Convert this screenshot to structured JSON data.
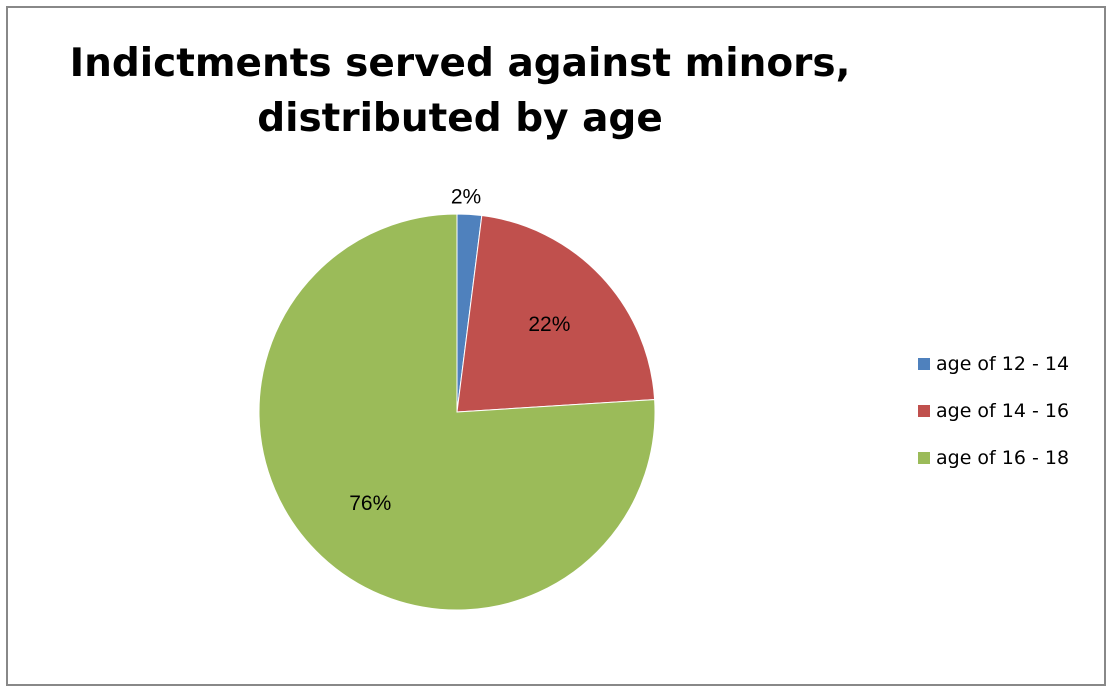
{
  "colors": {
    "age_12_14": "#4F81BD",
    "age_14_16": "#C0504D",
    "age_16_18": "#9BBB59",
    "border": "#888888",
    "background": "#FFFFFF"
  },
  "chart_data": {
    "type": "pie",
    "title": "Indictments served against minors, distributed by age",
    "title_lines": [
      "Indictments served against minors,",
      "distributed by age"
    ],
    "categories": [
      "age of 12 - 14",
      "age of 14 - 16",
      "age of 16 - 18"
    ],
    "values": [
      2,
      22,
      76
    ],
    "data_labels": [
      "2%",
      "22%",
      "76%"
    ],
    "colors": [
      "#4F81BD",
      "#C0504D",
      "#9BBB59"
    ],
    "legend_position": "right",
    "start_angle": "top, clockwise"
  }
}
